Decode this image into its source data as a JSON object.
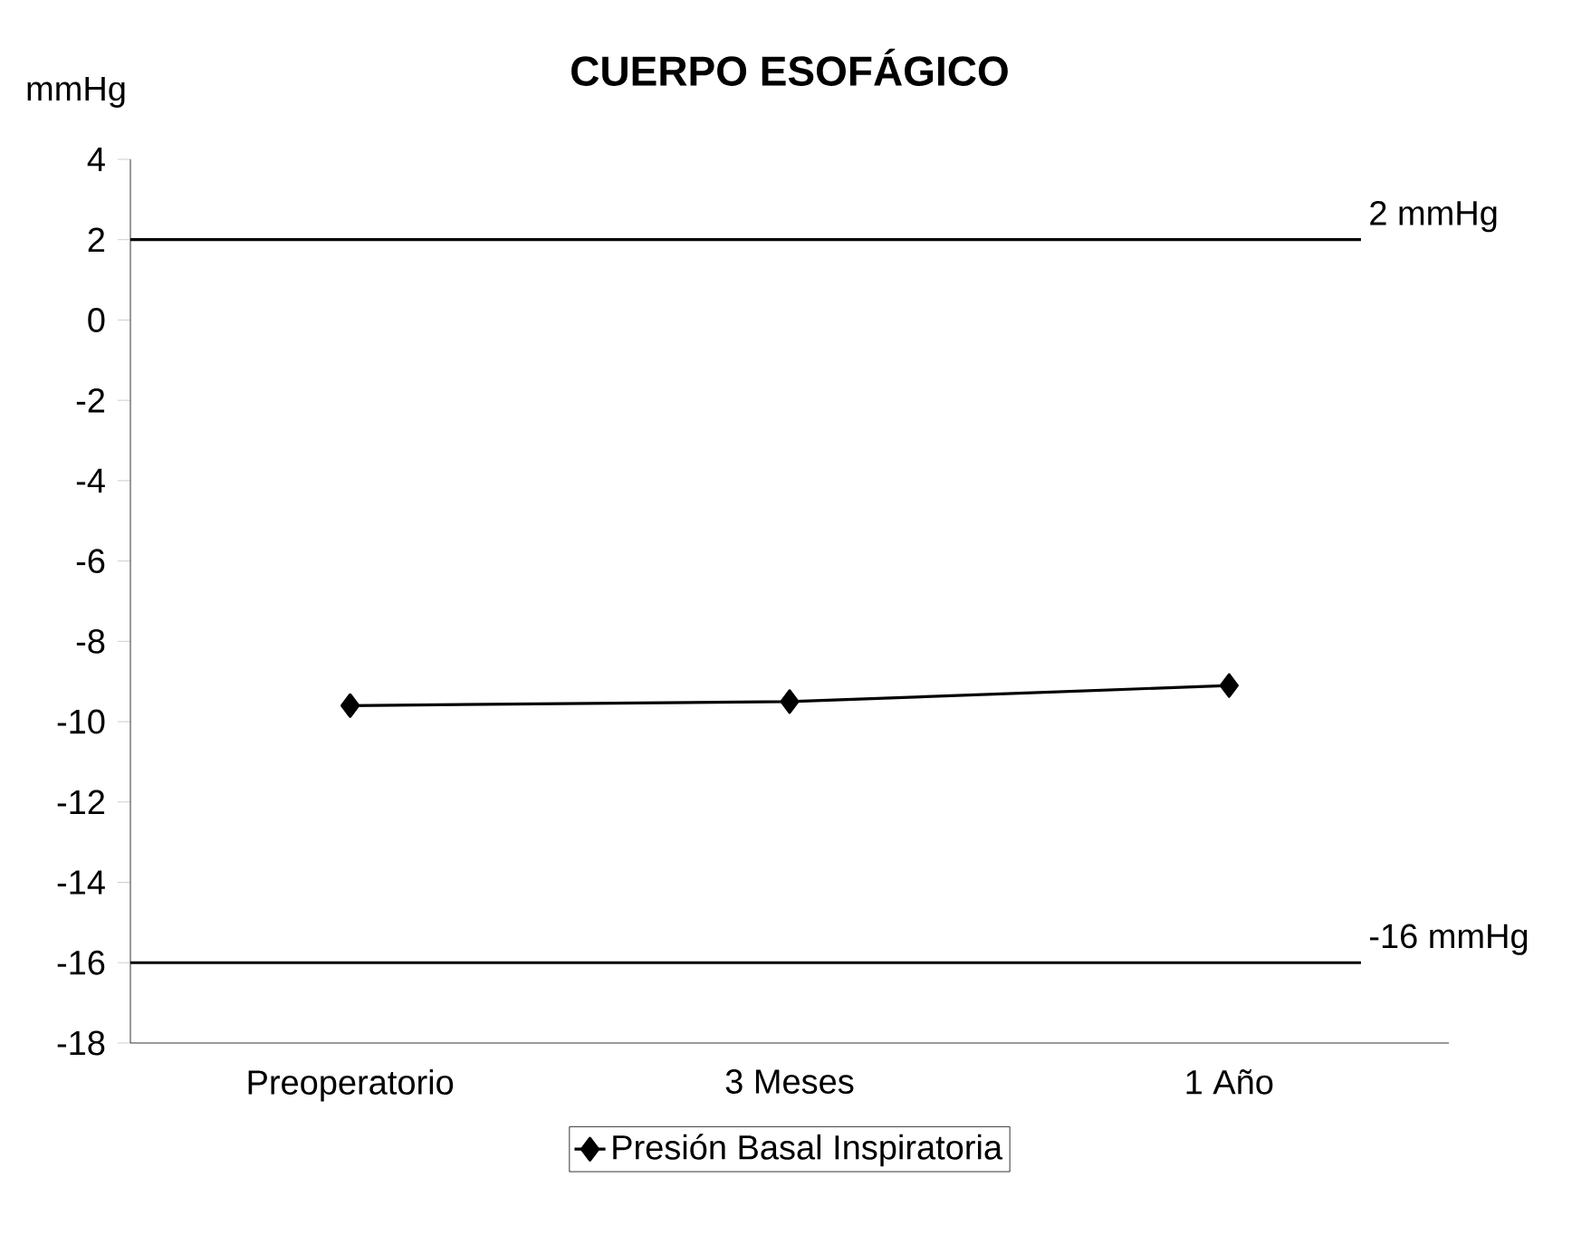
{
  "chart_data": {
    "type": "line",
    "title": "CUERPO ESOFÁGICO",
    "ylabel": "mmHg",
    "categories": [
      "Preoperatorio",
      "3 Meses",
      "1 Año"
    ],
    "series": [
      {
        "name": "Presión Basal Inspiratoria",
        "color": "#000000",
        "values": [
          -9.6,
          -9.5,
          -9.1
        ]
      }
    ],
    "ylim": [
      -18,
      4
    ],
    "yticks": [
      -18,
      -16,
      -14,
      -12,
      -10,
      -8,
      -6,
      -4,
      -2,
      0,
      2,
      4
    ],
    "ref_lines": [
      {
        "axis": "y",
        "value": 2,
        "label": "2 mmHg",
        "color": "#000000"
      },
      {
        "axis": "y",
        "value": -16,
        "label": "-16 mmHg",
        "color": "#000000"
      }
    ],
    "marker": "diamond",
    "line_style": "solid",
    "grid": false,
    "legend": "bottom"
  }
}
